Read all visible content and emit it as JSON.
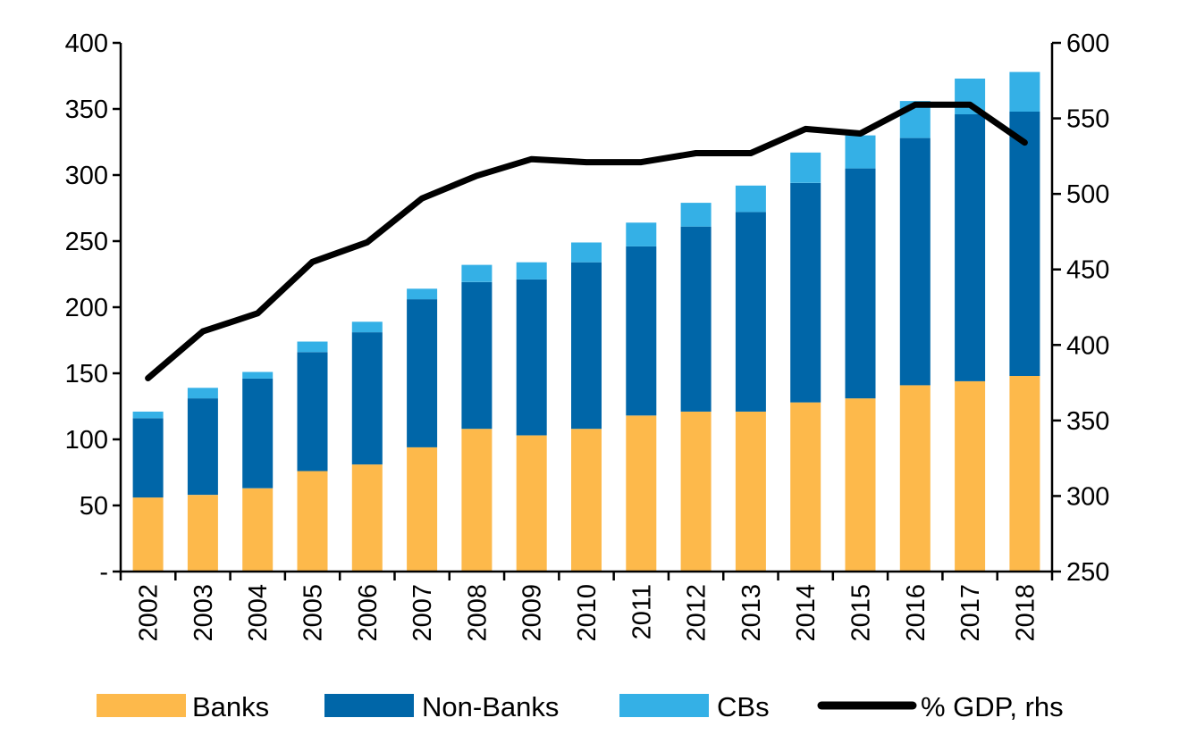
{
  "chart_data": {
    "type": "bar",
    "stacked": true,
    "categories": [
      "2002",
      "2003",
      "2004",
      "2005",
      "2006",
      "2007",
      "2008",
      "2009",
      "2010",
      "2011",
      "2012",
      "2013",
      "2014",
      "2015",
      "2016",
      "2017",
      "2018"
    ],
    "series": [
      {
        "name": "Banks",
        "type": "bar",
        "axis": "left",
        "color": "#FDB94B",
        "values": [
          56,
          58,
          63,
          76,
          81,
          94,
          108,
          103,
          108,
          118,
          121,
          121,
          128,
          131,
          141,
          144,
          148
        ]
      },
      {
        "name": "Non-Banks",
        "type": "bar",
        "axis": "left",
        "color": "#0066A8",
        "values": [
          60,
          73,
          83,
          90,
          100,
          112,
          111,
          118,
          126,
          128,
          140,
          151,
          166,
          174,
          187,
          202,
          200
        ]
      },
      {
        "name": "CBs",
        "type": "bar",
        "axis": "left",
        "color": "#34B0E6",
        "values": [
          5,
          8,
          5,
          8,
          8,
          8,
          13,
          13,
          15,
          18,
          18,
          20,
          23,
          25,
          28,
          27,
          30
        ]
      },
      {
        "name": "% GDP, rhs",
        "type": "line",
        "axis": "right",
        "color": "#000000",
        "values": [
          378,
          409,
          421,
          455,
          468,
          497,
          512,
          523,
          521,
          521,
          527,
          527,
          543,
          540,
          559,
          559,
          534
        ]
      }
    ],
    "y_left": {
      "min": 0,
      "max": 400,
      "ticks": [
        0,
        50,
        100,
        150,
        200,
        250,
        300,
        350,
        400
      ],
      "tick_labels": [
        "-",
        "50",
        "100",
        "150",
        "200",
        "250",
        "300",
        "350",
        "400"
      ]
    },
    "y_right": {
      "min": 250,
      "max": 600,
      "ticks": [
        250,
        300,
        350,
        400,
        450,
        500,
        550,
        600
      ],
      "tick_labels": [
        "250",
        "300",
        "350",
        "400",
        "450",
        "500",
        "550",
        "600"
      ]
    },
    "legend": {
      "position": "bottom"
    },
    "grid": false
  }
}
